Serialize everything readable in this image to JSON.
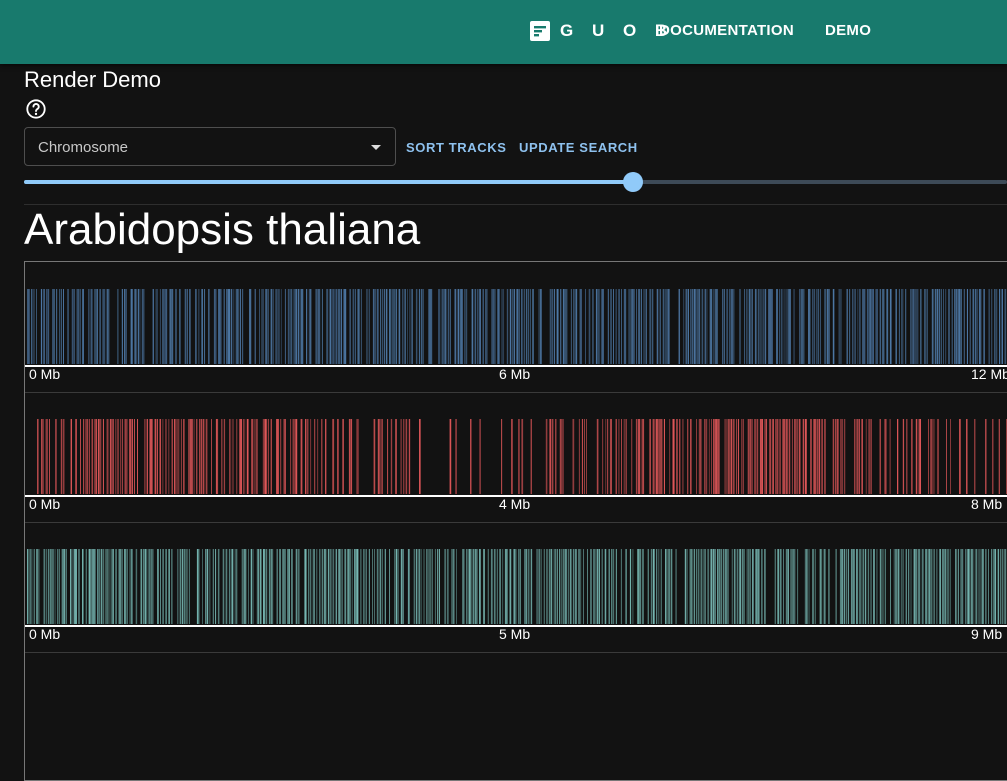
{
  "appbar": {
    "brand_text": "G U O B",
    "nav": [
      "DOCUMENTATION",
      "DEMO"
    ]
  },
  "page": {
    "title": "Render Demo"
  },
  "controls": {
    "select_value": "Chromosome",
    "sort_label": "SORT TRACKS",
    "update_label": "UPDATE SEARCH",
    "slider_value_fraction": 0.62
  },
  "organism": "Arabidopsis thaliana",
  "tracks": [
    {
      "color": "#4e79a7",
      "ticks": [
        "0 Mb",
        "6 Mb",
        "12 Mb"
      ]
    },
    {
      "color": "#e15759",
      "ticks": [
        "0 Mb",
        "4 Mb",
        "8 Mb"
      ]
    },
    {
      "color": "#76b7b2",
      "ticks": [
        "0 Mb",
        "5 Mb",
        "9 Mb"
      ]
    }
  ],
  "colors": {
    "appbar": "#187a6d",
    "accent": "#90caf9",
    "background": "#121212"
  }
}
